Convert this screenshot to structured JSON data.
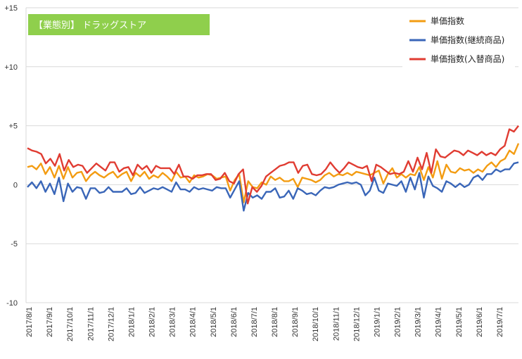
{
  "chart_data": {
    "type": "line",
    "title": "【業態別】 ドラッグストア",
    "ylim": [
      -10,
      15
    ],
    "yticks": [
      "-10",
      "-5",
      "0",
      "+5",
      "+10",
      "+15"
    ],
    "xtick_labels": [
      "2017/8/1",
      "2017/9/1",
      "2017/10/1",
      "2017/11/1",
      "2017/12/1",
      "2018/1/1",
      "2018/2/1",
      "2018/3/1",
      "2018/4/1",
      "2018/5/1",
      "2018/6/1",
      "2018/7/1",
      "2018/8/1",
      "2018/9/1",
      "2018/10/1",
      "2018/11/1",
      "2018/12/1",
      "2019/1/1",
      "2019/2/1",
      "2019/3/1",
      "2019/4/1",
      "2019/5/1",
      "2019/6/1",
      "2019/7/1"
    ],
    "legend_position": "top-right",
    "grid": "horizontal",
    "series": [
      {
        "name": "単価指数",
        "color": "#f39c12",
        "values": [
          1.5,
          1.6,
          1.3,
          1.8,
          0.9,
          1.5,
          0.6,
          1.6,
          0.5,
          1.5,
          0.6,
          1.0,
          1.1,
          0.3,
          0.8,
          1.1,
          0.8,
          0.6,
          0.9,
          1.1,
          0.6,
          0.9,
          1.1,
          0.3,
          1.0,
          0.7,
          1.1,
          0.5,
          0.8,
          0.6,
          1.0,
          0.7,
          0.3,
          1.1,
          0.6,
          0.7,
          0.2,
          0.8,
          0.6,
          0.7,
          0.9,
          0.8,
          0.5,
          0.6,
          0.7,
          -0.5,
          0.4,
          0.9,
          -1.5,
          0.3,
          -0.2,
          -0.3,
          0.2,
          0.0,
          0.7,
          0.4,
          0.6,
          0.3,
          0.3,
          0.5,
          -0.2,
          0.6,
          0.5,
          0.4,
          0.2,
          0.4,
          0.8,
          1.0,
          0.7,
          0.9,
          0.8,
          1.0,
          0.8,
          1.1,
          1.0,
          0.9,
          0.8,
          1.0,
          1.2,
          0.1,
          0.9,
          1.4,
          0.6,
          0.9,
          0.6,
          0.9,
          0.8,
          1.5,
          0.4,
          1.5,
          0.6,
          2.0,
          0.5,
          1.7,
          1.1,
          1.0,
          1.4,
          1.2,
          1.3,
          1.0,
          1.3,
          1.1,
          1.6,
          1.9,
          1.5,
          2.0,
          2.2,
          2.9,
          2.6,
          3.5
        ],
        "dash": false
      },
      {
        "name": "単価指数(継続商品)",
        "color": "#3a66b8",
        "values": [
          -0.2,
          0.2,
          -0.3,
          0.3,
          -0.6,
          0.1,
          -0.8,
          0.6,
          -1.4,
          0.1,
          -0.6,
          -0.2,
          -0.3,
          -1.2,
          -0.3,
          -0.3,
          -0.7,
          -0.6,
          -0.2,
          -0.6,
          -0.6,
          -0.6,
          -0.3,
          -0.8,
          -0.7,
          -0.2,
          -0.7,
          -0.5,
          -0.3,
          -0.4,
          -0.2,
          -0.4,
          -0.6,
          0.2,
          -0.4,
          -0.4,
          -0.6,
          -0.2,
          -0.4,
          -0.3,
          -0.4,
          -0.5,
          -0.2,
          -0.3,
          -0.3,
          -1.1,
          -0.4,
          0.3,
          -2.2,
          -0.7,
          -1.1,
          -0.9,
          -1.2,
          -0.6,
          -0.6,
          -0.3,
          -1.1,
          -1.0,
          -0.5,
          -1.2,
          -0.3,
          -0.5,
          -0.8,
          -0.7,
          -0.9,
          -0.5,
          -0.2,
          -0.3,
          -0.2,
          0.0,
          0.1,
          0.2,
          0.1,
          0.2,
          0.0,
          -0.9,
          -0.5,
          0.6,
          -0.5,
          -0.7,
          0.1,
          0.0,
          -0.1,
          0.3,
          -0.6,
          0.6,
          -0.4,
          1.0,
          -1.1,
          0.7,
          -0.1,
          -0.3,
          -0.6,
          0.3,
          0.1,
          -0.2,
          0.1,
          -0.2,
          0.0,
          0.6,
          0.8,
          0.4,
          0.9,
          0.9,
          1.3,
          1.1,
          1.3,
          1.3,
          1.8,
          1.9
        ],
        "dash": false
      },
      {
        "name": "単価指数(入替商品)",
        "color": "#e03c32",
        "values": [
          3.1,
          2.9,
          2.8,
          2.6,
          1.8,
          2.2,
          1.6,
          2.6,
          1.2,
          2.1,
          1.5,
          1.7,
          1.6,
          1.0,
          1.4,
          1.8,
          1.5,
          1.2,
          1.9,
          1.9,
          1.1,
          1.4,
          1.5,
          0.8,
          1.7,
          1.3,
          1.6,
          1.0,
          1.6,
          1.4,
          1.4,
          1.4,
          0.9,
          1.7,
          0.7,
          0.7,
          0.5,
          0.8,
          0.8,
          0.9,
          0.9,
          0.4,
          0.5,
          1.0,
          0.3,
          0.1,
          0.9,
          1.3,
          -1.6,
          -0.2,
          -0.6,
          -0.1,
          0.7,
          1.0,
          1.3,
          1.6,
          1.7,
          1.9,
          1.9,
          1.0,
          1.6,
          1.7,
          0.9,
          0.8,
          0.9,
          1.3,
          1.9,
          1.4,
          1.0,
          1.4,
          1.9,
          1.7,
          1.5,
          1.4,
          1.6,
          0.3,
          1.7,
          1.5,
          1.2,
          0.9,
          1.0,
          0.9,
          1.1,
          2.0,
          1.1,
          2.3,
          1.3,
          2.7,
          1.0,
          3.0,
          2.4,
          2.3,
          2.6,
          2.9,
          2.8,
          2.5,
          2.9,
          2.7,
          2.5,
          2.8,
          2.5,
          2.7,
          2.5,
          3.0,
          3.3,
          4.7,
          4.5,
          5.0
        ],
        "dash": false
      }
    ]
  }
}
